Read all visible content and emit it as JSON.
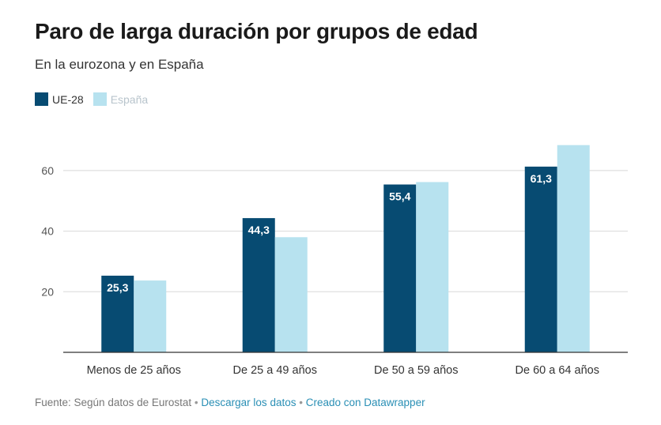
{
  "title": "Paro de larga duración por grupos de edad",
  "subtitle": "En la eurozona y en España",
  "colors": {
    "ue28": "#074b72",
    "espana": "#b7e2ef",
    "grid": "#d8d8d8",
    "axis": "#333333"
  },
  "footer": {
    "source": "Fuente: Según datos de Eurostat",
    "sep1": "•",
    "download": "Descargar los datos",
    "sep2": "•",
    "created": "Creado con Datawrapper"
  },
  "chart_data": {
    "type": "bar",
    "categories": [
      "Menos de 25 años",
      "De 25 a 49 años",
      "De 50 a 59 años",
      "De 60 a 64 años"
    ],
    "series": [
      {
        "name": "UE-28",
        "values": [
          25.3,
          44.3,
          55.4,
          61.3
        ],
        "labels": [
          "25,3",
          "44,3",
          "55,4",
          "61,3"
        ],
        "color": "#074b72"
      },
      {
        "name": "España",
        "values": [
          23.7,
          38.0,
          56.2,
          68.4
        ],
        "color": "#b7e2ef"
      }
    ],
    "ylim": [
      0,
      70
    ],
    "yticks": [
      20,
      40,
      60
    ],
    "grid": true,
    "legend_position": "top-left"
  }
}
